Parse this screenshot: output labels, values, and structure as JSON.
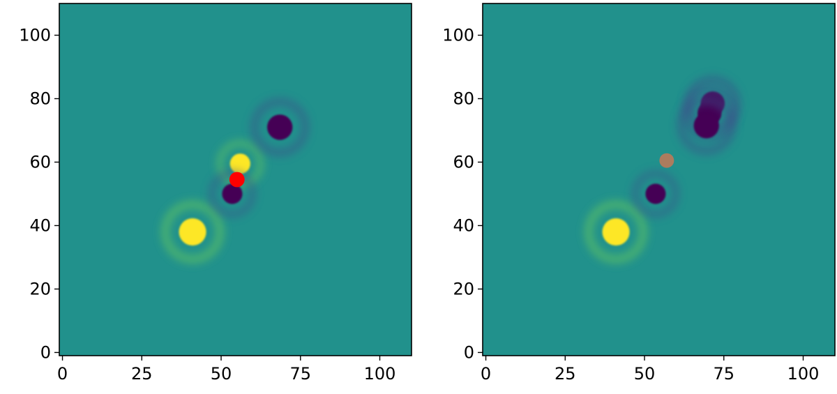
{
  "chart_data": [
    {
      "type": "heatmap",
      "title": "",
      "xlabel": "",
      "ylabel": "",
      "xlim": [
        -1,
        110
      ],
      "ylim": [
        -1,
        110
      ],
      "xticks": [
        0,
        25,
        50,
        75,
        100
      ],
      "yticks": [
        0,
        20,
        40,
        60,
        80,
        100
      ],
      "xtick_labels": [
        "0",
        "25",
        "50",
        "75",
        "100"
      ],
      "ytick_labels": [
        "0",
        "20",
        "40",
        "60",
        "80",
        "100"
      ],
      "colormap": "viridis",
      "background_color": "#21918c",
      "grid": false,
      "features": [
        {
          "kind": "positive-blob",
          "x": 41,
          "y": 38,
          "r": 4.3,
          "color": "#fde725"
        },
        {
          "kind": "positive-blob",
          "x": 56,
          "y": 59.5,
          "r": 3.2,
          "color": "#fde725"
        },
        {
          "kind": "negative-blob",
          "x": 68.5,
          "y": 71,
          "r": 4.0,
          "color": "#440154"
        },
        {
          "kind": "negative-blob",
          "x": 53.5,
          "y": 50,
          "r": 3.2,
          "color": "#440154"
        }
      ],
      "markers": [
        {
          "x": 55,
          "y": 54.5,
          "r": 2.4,
          "color": "#ff0000",
          "opacity": 1.0
        }
      ]
    },
    {
      "type": "heatmap",
      "title": "",
      "xlabel": "",
      "ylabel": "",
      "xlim": [
        -1,
        110
      ],
      "ylim": [
        -1,
        110
      ],
      "xticks": [
        0,
        25,
        50,
        75,
        100
      ],
      "yticks": [
        0,
        20,
        40,
        60,
        80,
        100
      ],
      "xtick_labels": [
        "0",
        "25",
        "50",
        "75",
        "100"
      ],
      "ytick_labels": [
        "0",
        "20",
        "40",
        "60",
        "80",
        "100"
      ],
      "colormap": "viridis",
      "background_color": "#21918c",
      "grid": false,
      "features": [
        {
          "kind": "positive-blob",
          "x": 41,
          "y": 38,
          "r": 4.3,
          "color": "#fde725"
        },
        {
          "kind": "negative-blob",
          "x": 71.5,
          "y": 78.5,
          "r": 3.8,
          "color": "#440154"
        },
        {
          "kind": "negative-blob",
          "x": 70.5,
          "y": 75.5,
          "r": 3.8,
          "color": "#440154"
        },
        {
          "kind": "negative-blob",
          "x": 69.5,
          "y": 71.5,
          "r": 4.0,
          "color": "#440154"
        },
        {
          "kind": "negative-blob",
          "x": 53.5,
          "y": 50,
          "r": 3.2,
          "color": "#440154"
        }
      ],
      "markers": [
        {
          "x": 57,
          "y": 60.5,
          "r": 2.3,
          "color": "#e8744a",
          "opacity": 0.7
        }
      ]
    }
  ]
}
